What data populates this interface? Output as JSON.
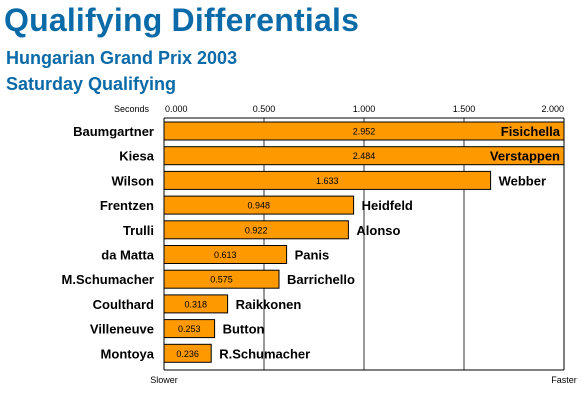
{
  "header": {
    "title": "Qualifying Differentials",
    "subtitle1": "Hungarian Grand Prix 2003",
    "subtitle2": "Saturday Qualifying"
  },
  "colors": {
    "bar": "#ff9900",
    "title": "#0b6aa8"
  },
  "chart_data": {
    "type": "bar",
    "orientation": "horizontal",
    "title": "Qualifying Differentials",
    "subtitle": "Hungarian Grand Prix 2003 Saturday Qualifying",
    "xlabel": "Seconds",
    "left_end_label": "Slower",
    "right_end_label": "Faster",
    "xlim": [
      0,
      2
    ],
    "tick_labels": [
      "0.000",
      "0.500",
      "1.000",
      "1.500",
      "2.000"
    ],
    "grid": true,
    "rows": [
      {
        "slower": "Baumgartner",
        "faster": "Fisichella",
        "value": 2.952,
        "label": "2.952"
      },
      {
        "slower": "Kiesa",
        "faster": "Verstappen",
        "value": 2.484,
        "label": "2.484"
      },
      {
        "slower": "Wilson",
        "faster": "Webber",
        "value": 1.633,
        "label": "1.633"
      },
      {
        "slower": "Frentzen",
        "faster": "Heidfeld",
        "value": 0.948,
        "label": "0.948"
      },
      {
        "slower": "Trulli",
        "faster": "Alonso",
        "value": 0.922,
        "label": "0.922"
      },
      {
        "slower": "da Matta",
        "faster": "Panis",
        "value": 0.613,
        "label": "0.613"
      },
      {
        "slower": "M.Schumacher",
        "faster": "Barrichello",
        "value": 0.575,
        "label": "0.575"
      },
      {
        "slower": "Coulthard",
        "faster": "Raikkonen",
        "value": 0.318,
        "label": "0.318"
      },
      {
        "slower": "Villeneuve",
        "faster": "Button",
        "value": 0.253,
        "label": "0.253"
      },
      {
        "slower": "Montoya",
        "faster": "R.Schumacher",
        "value": 0.236,
        "label": "0.236"
      }
    ]
  }
}
